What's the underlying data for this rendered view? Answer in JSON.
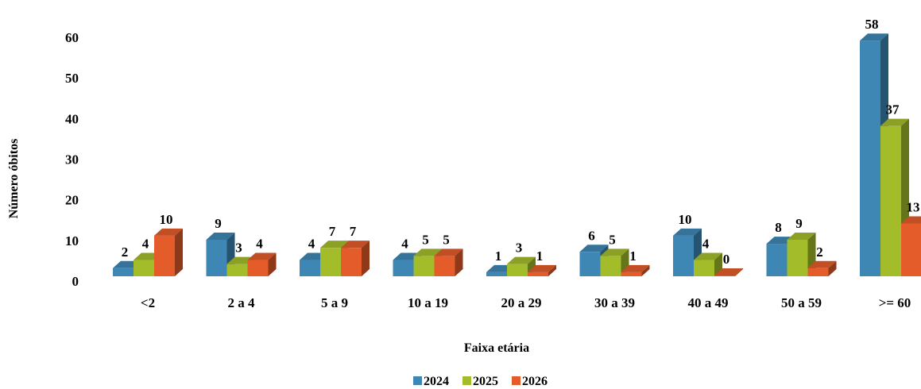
{
  "chart_data": {
    "type": "bar",
    "style": "3d-clustered-column",
    "title": "",
    "xlabel": "Faixa etária",
    "ylabel": "Número óbitos",
    "categories": [
      "<2",
      "2 a 4",
      "5 a 9",
      "10 a 19",
      "20 a 29",
      "30 a 39",
      "40 a 49",
      "50 a 59",
      ">= 60"
    ],
    "series": [
      {
        "name": "2024",
        "color": "#3E87B5",
        "values": [
          2,
          9,
          4,
          4,
          1,
          6,
          10,
          8,
          58
        ]
      },
      {
        "name": "2025",
        "color": "#A3BC2A",
        "values": [
          4,
          3,
          7,
          5,
          3,
          5,
          4,
          9,
          37
        ]
      },
      {
        "name": "2026",
        "color": "#E45C2A",
        "values": [
          10,
          4,
          7,
          5,
          1,
          1,
          0,
          2,
          13
        ]
      }
    ],
    "yticks": [
      0,
      10,
      20,
      30,
      40,
      50,
      60
    ],
    "ylim": [
      0,
      60
    ],
    "grid": false,
    "data_labels": true,
    "legend_position": "bottom"
  }
}
